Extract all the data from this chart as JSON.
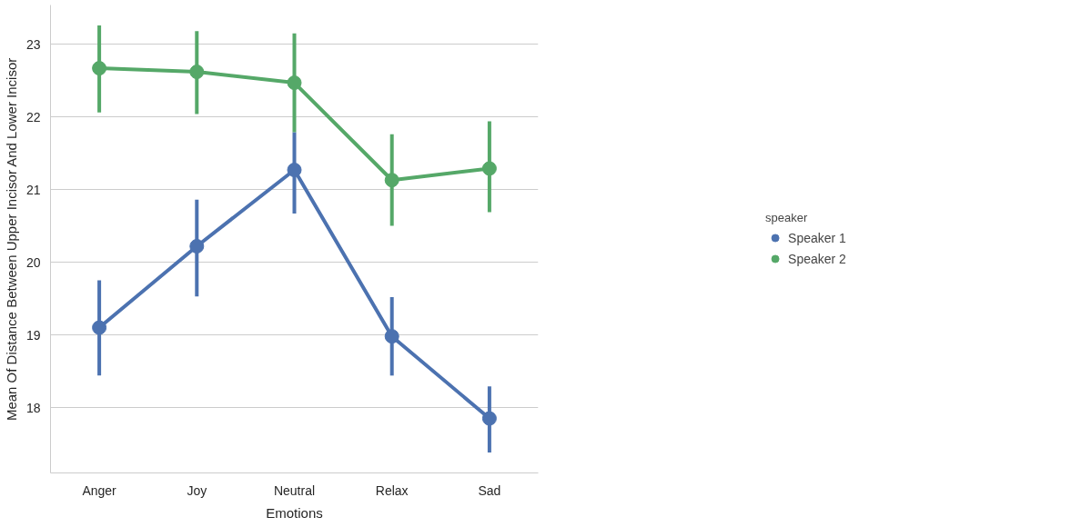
{
  "chart_data": {
    "type": "line",
    "xlabel": "Emotions",
    "ylabel": "Mean Of Distance Between Upper Incisor And Lower Incisor",
    "legend_title": "speaker",
    "categories": [
      "Anger",
      "Joy",
      "Neutral",
      "Relax",
      "Sad"
    ],
    "series": [
      {
        "name": "Speaker 1",
        "color": "#4c72b0",
        "values": [
          19.1,
          20.22,
          21.27,
          18.98,
          17.85
        ],
        "errors": [
          [
            18.44,
            19.75
          ],
          [
            19.53,
            20.86
          ],
          [
            20.67,
            21.79
          ],
          [
            18.44,
            19.52
          ],
          [
            17.38,
            18.29
          ]
        ]
      },
      {
        "name": "Speaker 2",
        "color": "#55a868",
        "values": [
          22.67,
          22.62,
          22.47,
          21.13,
          21.29
        ],
        "errors": [
          [
            22.06,
            23.26
          ],
          [
            22.04,
            23.18
          ],
          [
            21.79,
            23.15
          ],
          [
            20.5,
            21.76
          ],
          [
            20.69,
            21.94
          ]
        ]
      }
    ],
    "ylim": [
      17.1,
      23.54
    ],
    "yticks": [
      18,
      19,
      20,
      21,
      22,
      23
    ],
    "grid": "y",
    "legend": "right",
    "marker": "circle",
    "line_style": "solid"
  }
}
